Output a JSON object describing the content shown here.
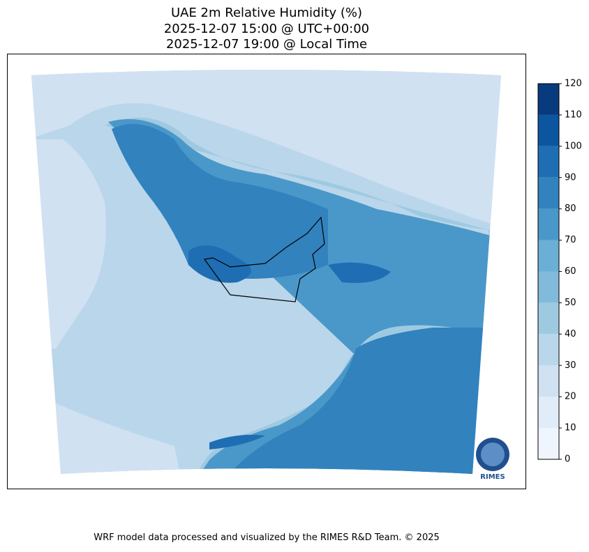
{
  "title": [
    "UAE 2m Relative Humidity (%)",
    "2025-12-07 15:00 @ UTC+00:00",
    "2025-12-07 19:00 @ Local Time"
  ],
  "colorbar": {
    "lim": [
      0,
      120
    ],
    "ticks": [
      0,
      10,
      20,
      30,
      40,
      50,
      60,
      70,
      80,
      90,
      100,
      110,
      120
    ],
    "colors": [
      "#eff5fc",
      "#e0ecf8",
      "#d0e1f2",
      "#bad6eb",
      "#9ecae1",
      "#82badb",
      "#6baed6",
      "#4a98c9",
      "#3282be",
      "#1f6eb3",
      "#0c56a0",
      "#083b7d"
    ]
  },
  "logo": "RIMES",
  "footer": "WRF model data processed and visualized by the RIMES R&D Team. © 2025"
}
